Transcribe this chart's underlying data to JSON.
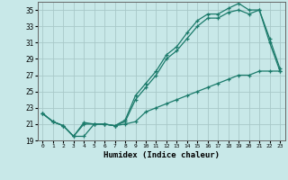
{
  "title": "",
  "xlabel": "Humidex (Indice chaleur)",
  "background_color": "#c8e8e8",
  "grid_color": "#a8c8c8",
  "line_color": "#1a7a6a",
  "xlim": [
    -0.5,
    23.5
  ],
  "ylim": [
    19,
    36
  ],
  "yticks": [
    19,
    21,
    23,
    25,
    27,
    29,
    31,
    33,
    35
  ],
  "xticks": [
    0,
    1,
    2,
    3,
    4,
    5,
    6,
    7,
    8,
    9,
    10,
    11,
    12,
    13,
    14,
    15,
    16,
    17,
    18,
    19,
    20,
    21,
    22,
    23
  ],
  "line1_x": [
    0,
    1,
    2,
    3,
    4,
    5,
    6,
    7,
    8,
    9,
    10,
    11,
    12,
    13,
    14,
    15,
    16,
    17,
    18,
    19,
    20,
    21,
    22,
    23
  ],
  "line1_y": [
    22.3,
    21.3,
    20.8,
    19.5,
    21.2,
    21.0,
    21.0,
    20.8,
    21.5,
    24.5,
    26.0,
    27.5,
    29.5,
    30.5,
    32.2,
    33.7,
    34.5,
    34.5,
    35.2,
    35.8,
    35.0,
    35.0,
    31.5,
    27.8
  ],
  "line2_x": [
    0,
    1,
    2,
    3,
    4,
    5,
    6,
    7,
    8,
    9,
    10,
    11,
    12,
    13,
    14,
    15,
    16,
    17,
    18,
    19,
    20,
    21,
    22,
    23
  ],
  "line2_y": [
    22.3,
    21.3,
    20.8,
    19.5,
    21.0,
    21.0,
    21.0,
    20.8,
    21.3,
    24.0,
    25.5,
    27.0,
    29.0,
    30.0,
    31.5,
    33.0,
    34.0,
    34.0,
    34.7,
    35.0,
    34.5,
    35.0,
    31.0,
    27.5
  ],
  "line3_x": [
    0,
    1,
    2,
    3,
    4,
    5,
    6,
    7,
    8,
    9,
    10,
    11,
    12,
    13,
    14,
    15,
    16,
    17,
    18,
    19,
    20,
    21,
    22,
    23
  ],
  "line3_y": [
    22.3,
    21.3,
    20.8,
    19.5,
    19.5,
    21.0,
    21.0,
    20.8,
    21.0,
    21.3,
    22.5,
    23.0,
    23.5,
    24.0,
    24.5,
    25.0,
    25.5,
    26.0,
    26.5,
    27.0,
    27.0,
    27.5,
    27.5,
    27.5
  ]
}
